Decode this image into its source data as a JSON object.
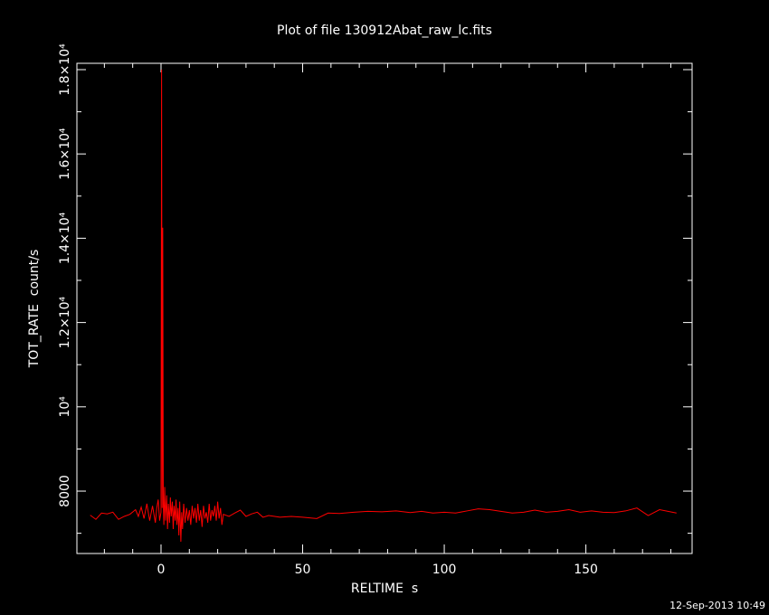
{
  "chart_data": {
    "type": "line",
    "title": "Plot of file 130912Abat_raw_lc.fits",
    "xlabel": "RELTIME  s",
    "ylabel": "TOT_RATE  count/s",
    "footer": "12-Sep-2013 10:49",
    "color": "#ff0000",
    "x": [
      -25,
      -23,
      -21,
      -19,
      -17,
      -15,
      -13,
      -11,
      -9,
      -8,
      -7,
      -6,
      -5,
      -4,
      -3,
      -2,
      -1.5,
      -1,
      -0.5,
      0,
      0.2,
      0.4,
      0.6,
      0.8,
      1,
      1.3,
      1.6,
      2,
      2.3,
      2.6,
      3,
      3.3,
      3.6,
      4,
      4.3,
      4.6,
      5,
      5.3,
      5.6,
      6,
      6.3,
      6.6,
      7,
      7.3,
      7.6,
      8,
      8.5,
      9,
      9.5,
      10,
      10.5,
      11,
      11.5,
      12,
      12.5,
      13,
      13.5,
      14,
      14.5,
      15,
      15.5,
      16,
      16.5,
      17,
      17.5,
      18,
      18.5,
      19,
      19.5,
      20,
      20.5,
      21,
      21.5,
      22,
      24,
      26,
      28,
      30,
      32,
      34,
      36,
      38,
      42,
      46,
      50,
      55,
      59,
      63,
      68,
      73,
      78,
      83,
      88,
      92,
      96,
      100,
      104,
      108,
      112,
      116,
      120,
      124,
      128,
      132,
      136,
      140,
      144,
      148,
      152,
      156,
      160,
      164,
      168,
      172,
      176,
      182
    ],
    "values": [
      7430,
      7330,
      7480,
      7460,
      7500,
      7330,
      7400,
      7450,
      7560,
      7400,
      7620,
      7350,
      7700,
      7300,
      7650,
      7250,
      7600,
      7800,
      7300,
      7500,
      18000,
      7600,
      14250,
      7700,
      7200,
      8100,
      7300,
      7900,
      7100,
      7700,
      7250,
      7850,
      7400,
      7750,
      7100,
      7650,
      7300,
      7800,
      7200,
      7600,
      6950,
      7750,
      6800,
      7500,
      7100,
      7700,
      7250,
      7600,
      7300,
      7550,
      7200,
      7650,
      7350,
      7600,
      7250,
      7700,
      7300,
      7550,
      7150,
      7650,
      7350,
      7500,
      7250,
      7700,
      7300,
      7550,
      7400,
      7650,
      7300,
      7750,
      7350,
      7600,
      7200,
      7450,
      7400,
      7480,
      7550,
      7400,
      7460,
      7500,
      7380,
      7420,
      7380,
      7400,
      7380,
      7350,
      7480,
      7470,
      7500,
      7520,
      7510,
      7530,
      7490,
      7520,
      7480,
      7500,
      7480,
      7530,
      7580,
      7560,
      7520,
      7480,
      7500,
      7550,
      7500,
      7520,
      7560,
      7500,
      7530,
      7500,
      7490,
      7530,
      7600,
      7420,
      7560,
      7480
    ],
    "xlim": [
      -29.7,
      187.5
    ],
    "ylim": [
      6520,
      18150
    ],
    "xticks": [
      0,
      50,
      100,
      150
    ],
    "yticks": [
      8000,
      {
        "value": 10000,
        "label": "10⁴"
      },
      {
        "value": 12000,
        "label": "1.2×10⁴"
      },
      {
        "value": 14000,
        "label": "1.4×10⁴"
      },
      {
        "value": 16000,
        "label": "1.6×10⁴"
      },
      {
        "value": 18000,
        "label": "1.8×10⁴"
      }
    ],
    "xminorticks": [
      -20,
      -10,
      10,
      20,
      30,
      40,
      60,
      70,
      80,
      90,
      110,
      120,
      130,
      140,
      160,
      170,
      180
    ],
    "yminorticks": [
      7000,
      9000,
      11000,
      13000,
      15000,
      17000
    ]
  }
}
